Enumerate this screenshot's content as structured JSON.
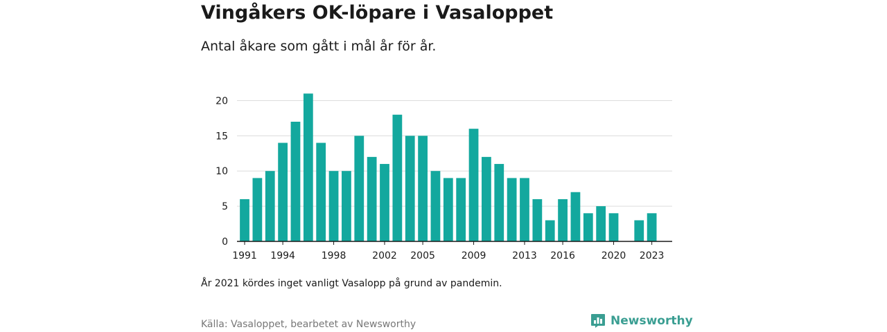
{
  "header": {
    "title": "Vingåkers OK-löpare i Vasaloppet",
    "subtitle": "Antal åkare som gått i mål år för år."
  },
  "footer": {
    "note": "År 2021 kördes inget vanligt Vasalopp på grund av pandemin.",
    "source": "Källa: Vasaloppet, bearbetet av Newsworthy",
    "brand": "Newsworthy",
    "brand_icon": "bar-chart-speech-bubble-icon"
  },
  "colors": {
    "bar": "#13a89e",
    "grid": "#dcdcdc",
    "axis": "#1a1a1a",
    "brand": "#3a9e92"
  },
  "chart_data": {
    "type": "bar",
    "title": "Vingåkers OK-löpare i Vasaloppet",
    "subtitle": "Antal åkare som gått i mål år för år.",
    "xlabel": "",
    "ylabel": "",
    "x": [
      1991,
      1992,
      1993,
      1994,
      1995,
      1996,
      1997,
      1998,
      1999,
      2000,
      2001,
      2002,
      2003,
      2004,
      2005,
      2006,
      2007,
      2008,
      2009,
      2010,
      2011,
      2012,
      2013,
      2014,
      2015,
      2016,
      2017,
      2018,
      2019,
      2020,
      2021,
      2022,
      2023
    ],
    "values": [
      6,
      9,
      10,
      14,
      17,
      21,
      14,
      10,
      10,
      15,
      12,
      11,
      18,
      15,
      15,
      10,
      9,
      9,
      16,
      12,
      11,
      9,
      9,
      6,
      3,
      6,
      7,
      4,
      5,
      4,
      null,
      3,
      4
    ],
    "xticks": [
      1991,
      1994,
      1998,
      2002,
      2005,
      2009,
      2013,
      2016,
      2020,
      2023
    ],
    "yticks": [
      0,
      5,
      10,
      15,
      20
    ],
    "xlim": [
      1990.4,
      2024.6
    ],
    "ylim": [
      0,
      22.5
    ],
    "grid": true,
    "legend": "none"
  }
}
